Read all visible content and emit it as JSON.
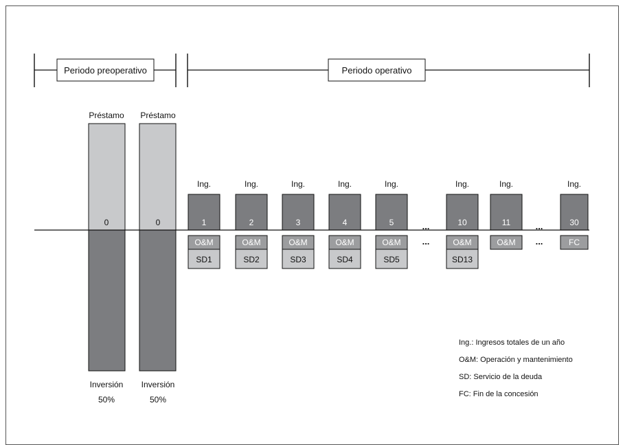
{
  "headers": {
    "preoperative": "Periodo preoperativo",
    "operative": "Periodo operativo"
  },
  "colors": {
    "light": "#c8c9cb",
    "dark": "#7c7d80",
    "mid": "#9c9d9f",
    "white": "#ffffff",
    "line": "#111111"
  },
  "preop_columns": [
    {
      "top_label": "Préstamo",
      "year": "0",
      "bottom_label": "Inversión",
      "percent": "50%"
    },
    {
      "top_label": "Préstamo",
      "year": "0",
      "bottom_label": "Inversión",
      "percent": "50%"
    }
  ],
  "op_columns": [
    {
      "top_label": "Ing.",
      "year": "1",
      "om": "O&M",
      "sd": "SD1"
    },
    {
      "top_label": "Ing.",
      "year": "2",
      "om": "O&M",
      "sd": "SD2"
    },
    {
      "top_label": "Ing.",
      "year": "3",
      "om": "O&M",
      "sd": "SD3"
    },
    {
      "top_label": "Ing.",
      "year": "4",
      "om": "O&M",
      "sd": "SD4"
    },
    {
      "top_label": "Ing.",
      "year": "5",
      "om": "O&M",
      "sd": "SD5"
    },
    {
      "top_label": "Ing.",
      "year": "10",
      "om": "O&M",
      "sd": "SD13"
    },
    {
      "top_label": "Ing.",
      "year": "11",
      "om": "O&M",
      "sd": ""
    },
    {
      "top_label": "Ing.",
      "year": "30",
      "om": "FC",
      "sd": ""
    }
  ],
  "ellipsis": "...",
  "legend": [
    "Ing.: Ingresos totales de un año",
    "O&M: Operación y mantenimiento",
    "SD: Servicio de la deuda",
    "FC: Fin de la concesión"
  ]
}
